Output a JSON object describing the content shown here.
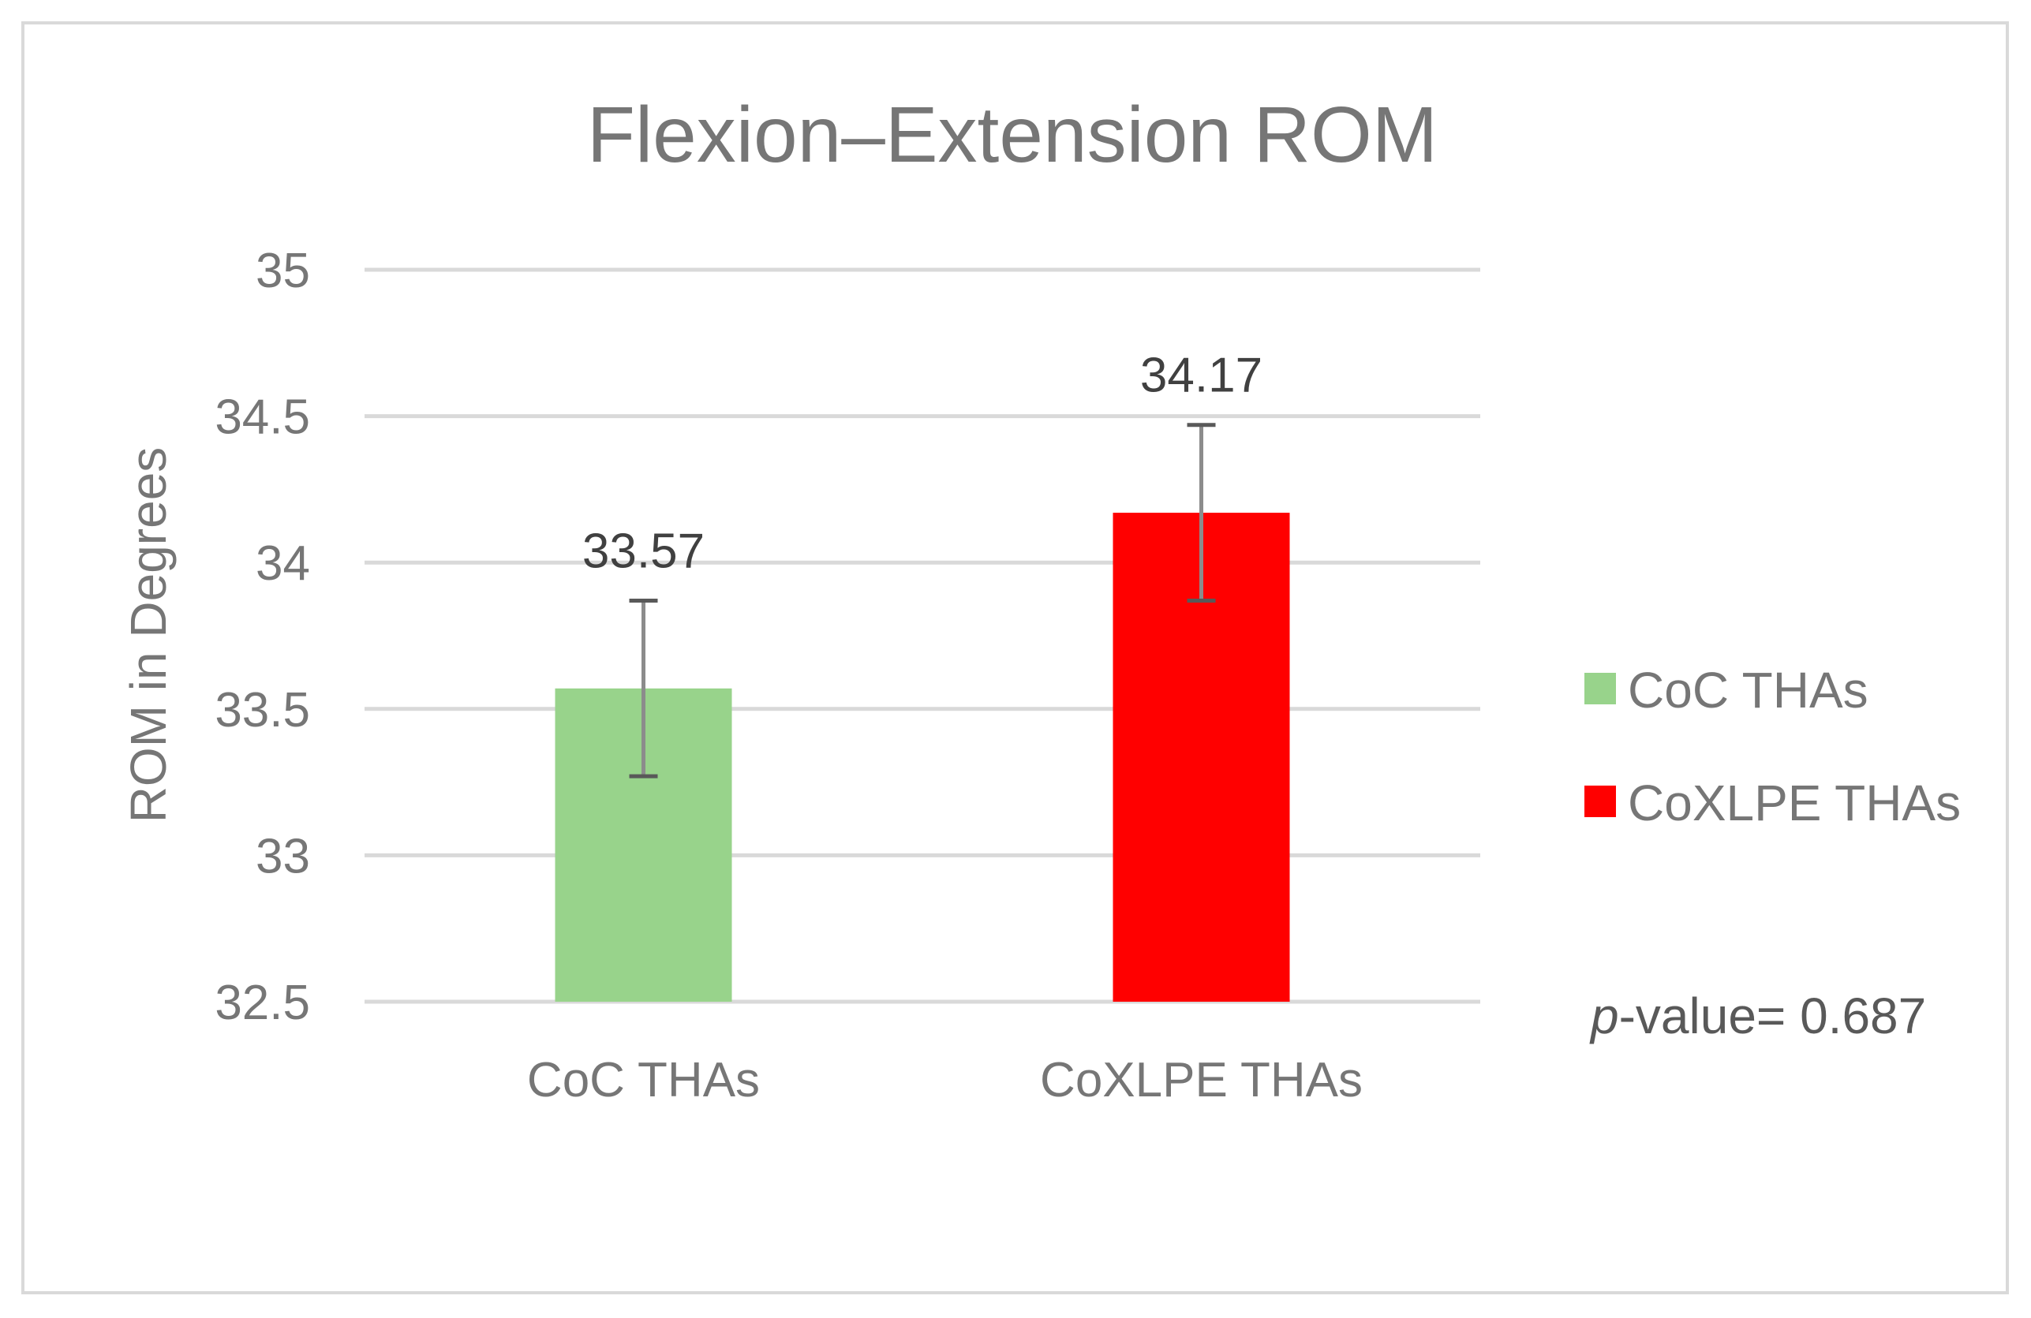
{
  "chart_data": {
    "type": "bar",
    "title": "Flexion–Extension ROM",
    "xlabel": "",
    "ylabel": "ROM in Degrees",
    "categories": [
      "CoC THAs",
      "CoXLPE THAs"
    ],
    "values": [
      33.57,
      34.17
    ],
    "error": [
      0.3,
      0.3
    ],
    "colors": [
      "#98d38b",
      "#ff0000"
    ],
    "data_labels": [
      "33.57",
      "34.17"
    ],
    "ylim": [
      32.5,
      35
    ],
    "yticks": [
      32.5,
      33,
      33.5,
      34,
      34.5,
      35
    ],
    "ytick_labels": [
      "32.5",
      "33",
      "33.5",
      "34",
      "34.5",
      "35"
    ],
    "grid": true,
    "legend": {
      "position": "right",
      "entries": [
        {
          "label": "CoC THAs",
          "color": "#98d38b"
        },
        {
          "label": "CoXLPE THAs",
          "color": "#ff0000"
        }
      ]
    },
    "annotation": {
      "italic": "p",
      "text": "-value= 0.687"
    }
  }
}
